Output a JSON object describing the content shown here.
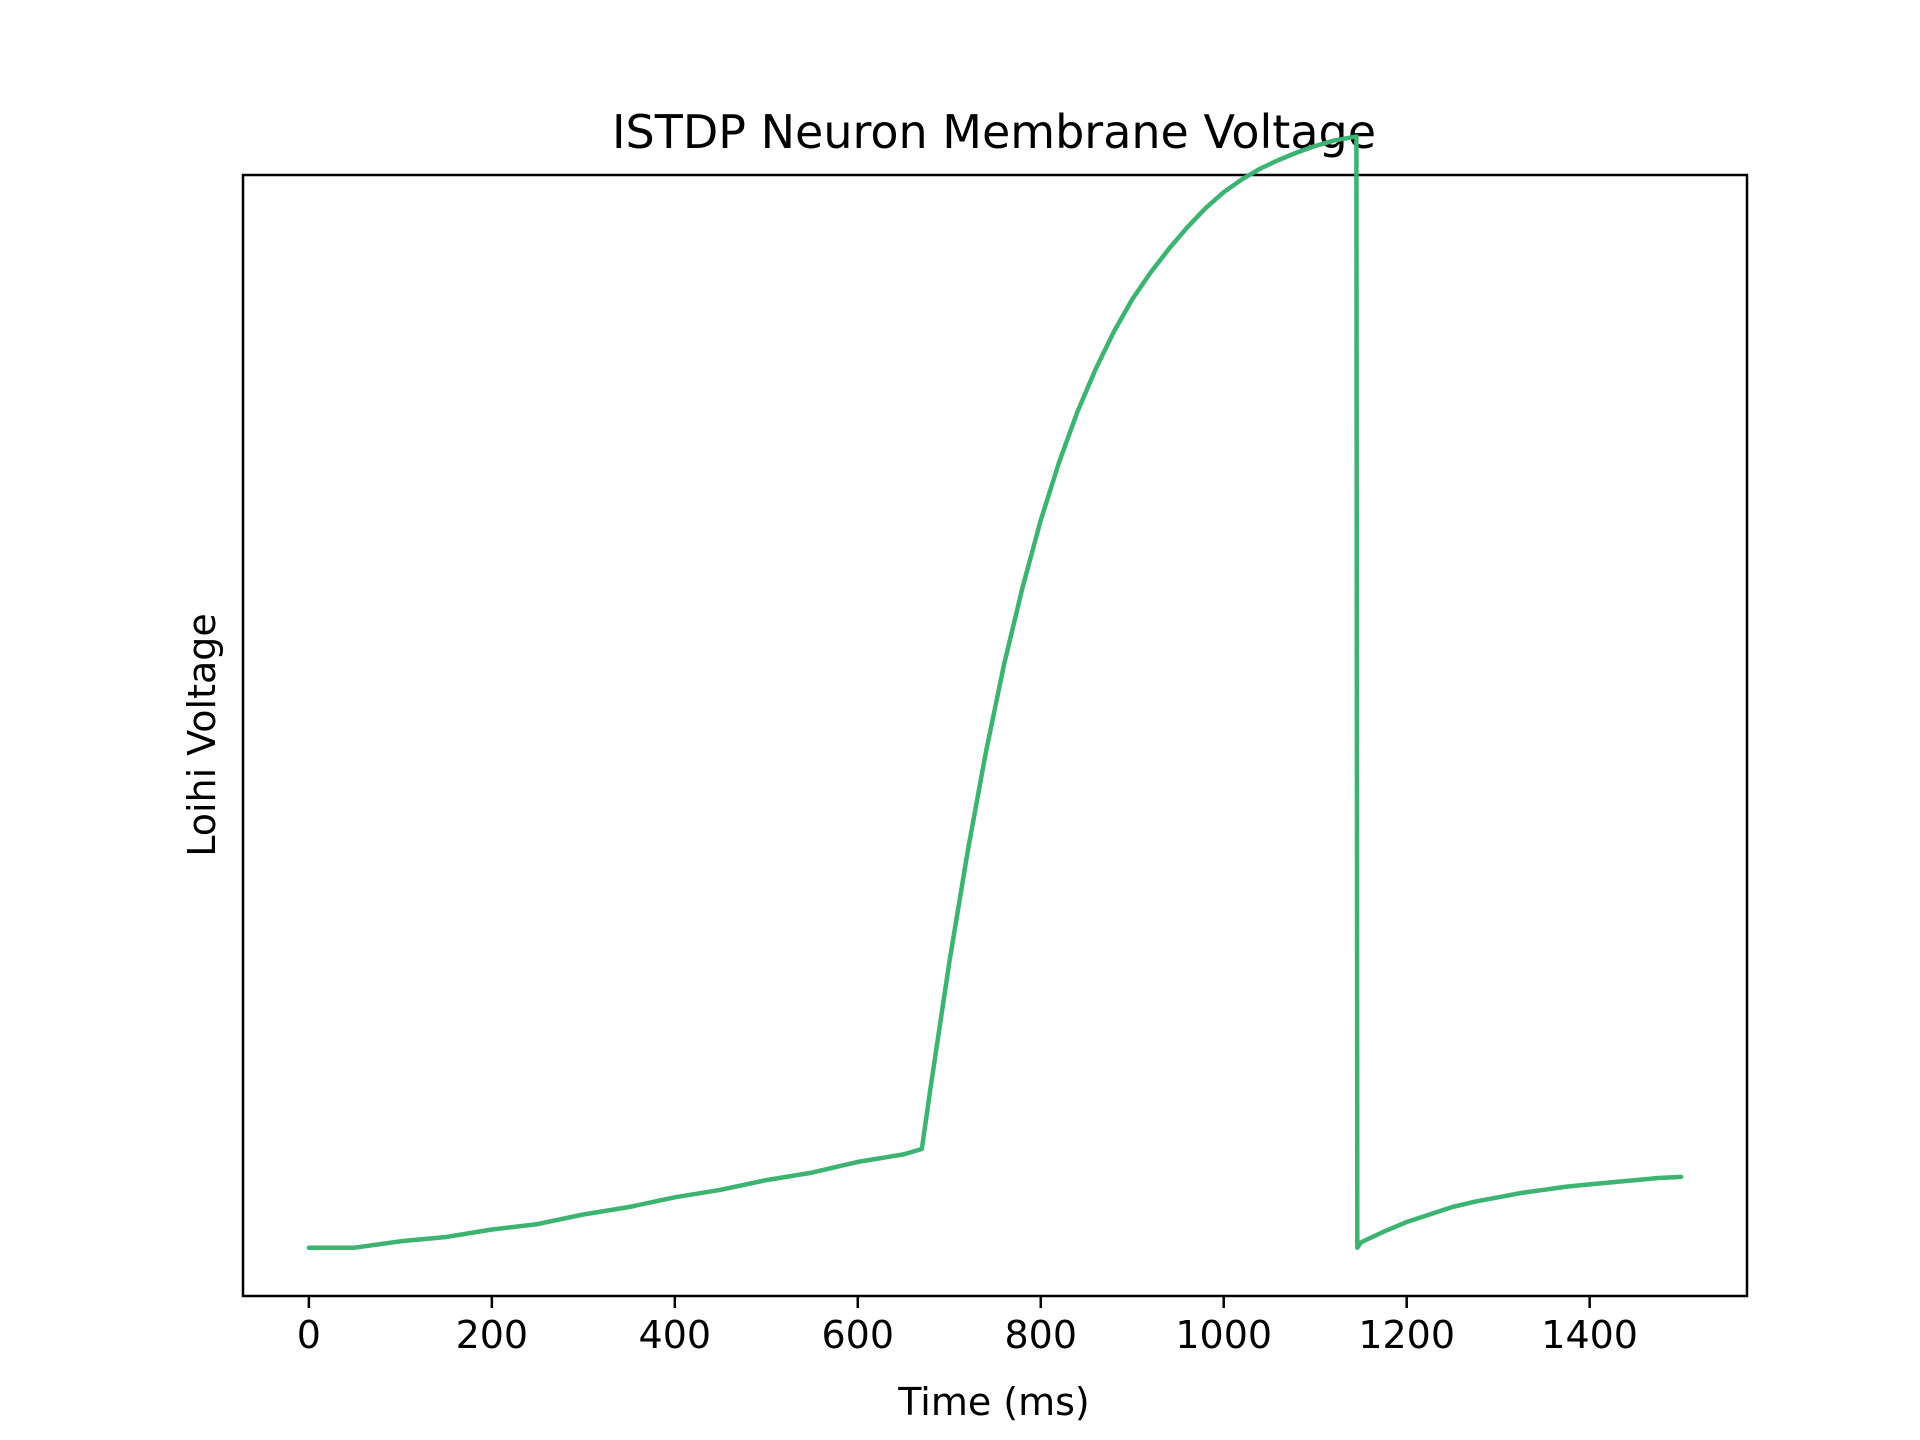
{
  "chart_data": {
    "type": "line",
    "title": "ISTDP Neuron Membrane Voltage",
    "xlabel": "Time (ms)",
    "ylabel": "Loihi Voltage",
    "xlim": [
      -72,
      1572
    ],
    "ylim": [
      -4.5,
      100
    ],
    "x_ticks": [
      0,
      200,
      400,
      600,
      800,
      1000,
      1200,
      1400
    ],
    "y_ticks_visible": false,
    "grid": false,
    "legend": "none",
    "series": [
      {
        "color": "#3cb371",
        "x": [
          0,
          50,
          100,
          150,
          200,
          250,
          300,
          350,
          400,
          450,
          500,
          550,
          600,
          650,
          670,
          680,
          700,
          720,
          740,
          760,
          780,
          800,
          820,
          840,
          860,
          880,
          900,
          920,
          940,
          960,
          980,
          1000,
          1020,
          1040,
          1060,
          1080,
          1100,
          1120,
          1145,
          1146,
          1150,
          1175,
          1200,
          1225,
          1250,
          1275,
          1300,
          1325,
          1350,
          1375,
          1400,
          1425,
          1450,
          1475,
          1500
        ],
        "y": [
          0,
          0,
          0.6,
          1,
          1.7,
          2.2,
          3.1,
          3.8,
          4.7,
          5.4,
          6.3,
          7,
          8,
          8.7,
          9.2,
          15.2,
          26.6,
          36.9,
          46.2,
          54.4,
          61.5,
          67.8,
          73.2,
          77.9,
          81.9,
          85.4,
          88.4,
          90.9,
          93.1,
          95.1,
          96.9,
          98.4,
          99.6,
          100.6,
          101.4,
          102.1,
          102.7,
          103.2,
          103.6,
          0,
          0.5,
          1.5,
          2.4,
          3.1,
          3.8,
          4.3,
          4.7,
          5.1,
          5.4,
          5.7,
          5.9,
          6.1,
          6.3,
          6.5,
          6.6
        ]
      }
    ]
  }
}
